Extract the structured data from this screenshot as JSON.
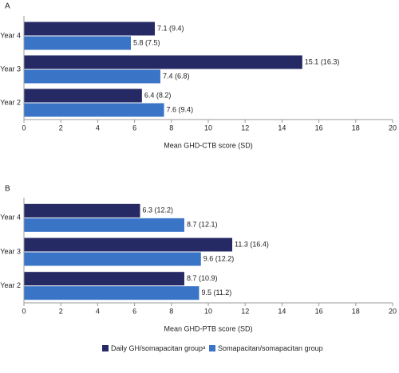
{
  "chart_data": [
    {
      "type": "hbar",
      "label": "A",
      "xlabel": "Mean GHD-CTB score (SD)",
      "categories": [
        "Year 4",
        "Year 3",
        "Year 2"
      ],
      "series": [
        {
          "color": "#262a64",
          "values": [
            7.1,
            15.1,
            6.4
          ],
          "value_labels": [
            "7.1 (9.4)",
            "15.1 (16.3)",
            "6.4 (8.2)"
          ]
        },
        {
          "color": "#3a74c6",
          "values": [
            5.8,
            7.4,
            7.6
          ],
          "value_labels": [
            "5.8 (7.5)",
            "7.4 (6.8)",
            "7.6 (9.4)"
          ]
        }
      ],
      "xlim": [
        0,
        20
      ],
      "xticks": [
        0,
        2,
        4,
        6,
        8,
        10,
        12,
        14,
        16,
        18,
        20
      ]
    },
    {
      "type": "hbar",
      "label": "B",
      "xlabel": "Mean GHD-PTB score (SD)",
      "categories": [
        "Year 4",
        "Year 3",
        "Year 2"
      ],
      "series": [
        {
          "name": "Daily GH/somapacitan groupᵃ",
          "color": "#262a64",
          "values": [
            6.3,
            11.3,
            8.7
          ],
          "value_labels": [
            "6.3 (12.2)",
            "11.3 (16.4)",
            "8.7 (10.9)"
          ]
        },
        {
          "name": "Somapacitan/somapacitan group",
          "color": "#3a74c6",
          "values": [
            8.7,
            9.6,
            9.5
          ],
          "value_labels": [
            "8.7 (12.1)",
            "9.6 (12.2)",
            "9.5 (11.2)"
          ]
        }
      ],
      "xlim": [
        0,
        20
      ],
      "xticks": [
        0,
        2,
        4,
        6,
        8,
        10,
        12,
        14,
        16,
        18,
        20
      ]
    }
  ]
}
